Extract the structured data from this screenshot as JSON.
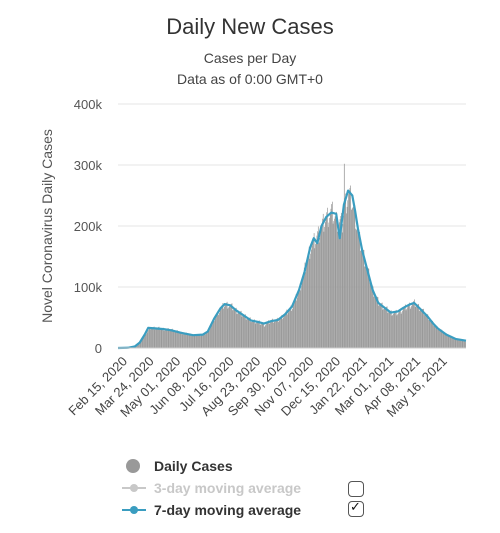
{
  "title": "Daily New Cases",
  "subtitle_1": "Cases per Day",
  "subtitle_2": "Data as of 0:00 GMT+0",
  "colors": {
    "bars": "#999999",
    "line7": "#3a9dc0",
    "line3": "#c8c8c8",
    "grid": "#e6e6e6"
  },
  "legend": {
    "daily": "Daily Cases",
    "ma3": "3-day moving average",
    "ma7": "7-day moving average",
    "ma3_checked": false,
    "ma7_checked": true
  },
  "chart_data": {
    "type": "bar",
    "ylabel": "Novel Coronavirus Daily Cases",
    "ylim": [
      0,
      400000
    ],
    "yticks": [
      0,
      100000,
      200000,
      300000,
      400000
    ],
    "ytick_labels": [
      "0",
      "100k",
      "200k",
      "300k",
      "400k"
    ],
    "xlabels": [
      "Feb 15, 2020",
      "Mar 24, 2020",
      "May 01, 2020",
      "Jun 08, 2020",
      "Jul 16, 2020",
      "Aug 23, 2020",
      "Sep 30, 2020",
      "Nov 07, 2020",
      "Dec 15, 2020",
      "Jan 22, 2021",
      "Mar 01, 2021",
      "Apr 08, 2021",
      "May 16, 2021"
    ],
    "x_start": "2020-02-15",
    "x_end": "2021-06-25",
    "grid": true,
    "legend_position": "bottom",
    "series": [
      {
        "name": "Daily Cases",
        "type": "bar",
        "points": [
          [
            "2020-02-15",
            50
          ],
          [
            "2020-03-01",
            600
          ],
          [
            "2020-03-10",
            2500
          ],
          [
            "2020-03-17",
            9000
          ],
          [
            "2020-03-24",
            22000
          ],
          [
            "2020-04-01",
            33000
          ],
          [
            "2020-04-10",
            33000
          ],
          [
            "2020-04-20",
            31000
          ],
          [
            "2020-05-01",
            30000
          ],
          [
            "2020-05-15",
            25000
          ],
          [
            "2020-06-01",
            21000
          ],
          [
            "2020-06-15",
            22000
          ],
          [
            "2020-06-22",
            27000
          ],
          [
            "2020-07-01",
            48000
          ],
          [
            "2020-07-10",
            65000
          ],
          [
            "2020-07-16",
            72000
          ],
          [
            "2020-07-24",
            70000
          ],
          [
            "2020-08-01",
            62000
          ],
          [
            "2020-08-10",
            55000
          ],
          [
            "2020-08-23",
            45000
          ],
          [
            "2020-09-01",
            43000
          ],
          [
            "2020-09-10",
            38000
          ],
          [
            "2020-09-20",
            45000
          ],
          [
            "2020-09-30",
            46000
          ],
          [
            "2020-10-10",
            56000
          ],
          [
            "2020-10-20",
            68000
          ],
          [
            "2020-10-30",
            95000
          ],
          [
            "2020-11-07",
            130000
          ],
          [
            "2020-11-15",
            165000
          ],
          [
            "2020-11-25",
            185000
          ],
          [
            "2020-12-01",
            200000
          ],
          [
            "2020-12-08",
            215000
          ],
          [
            "2020-12-15",
            225000
          ],
          [
            "2020-12-22",
            210000
          ],
          [
            "2020-12-30",
            205000
          ],
          [
            "2021-01-02",
            230000
          ],
          [
            "2021-01-08",
            255000
          ],
          [
            "2021-01-12",
            245000
          ],
          [
            "2021-01-18",
            215000
          ],
          [
            "2021-01-22",
            185000
          ],
          [
            "2021-01-28",
            160000
          ],
          [
            "2021-02-05",
            125000
          ],
          [
            "2021-02-12",
            95000
          ],
          [
            "2021-02-20",
            75000
          ],
          [
            "2021-03-01",
            66000
          ],
          [
            "2021-03-10",
            58000
          ],
          [
            "2021-03-20",
            58000
          ],
          [
            "2021-03-28",
            65000
          ],
          [
            "2021-04-05",
            70000
          ],
          [
            "2021-04-12",
            74000
          ],
          [
            "2021-04-20",
            66000
          ],
          [
            "2021-05-01",
            52000
          ],
          [
            "2021-05-10",
            38000
          ],
          [
            "2021-05-16",
            32000
          ],
          [
            "2021-05-28",
            22000
          ],
          [
            "2021-06-10",
            15000
          ],
          [
            "2021-06-25",
            11000
          ]
        ]
      },
      {
        "name": "7-day moving average",
        "type": "line",
        "points": [
          [
            "2020-02-15",
            0
          ],
          [
            "2020-03-01",
            500
          ],
          [
            "2020-03-10",
            2500
          ],
          [
            "2020-03-17",
            9000
          ],
          [
            "2020-03-24",
            22000
          ],
          [
            "2020-03-29",
            33000
          ],
          [
            "2020-04-10",
            32000
          ],
          [
            "2020-04-20",
            31000
          ],
          [
            "2020-05-01",
            29000
          ],
          [
            "2020-05-15",
            25000
          ],
          [
            "2020-06-01",
            21000
          ],
          [
            "2020-06-15",
            22000
          ],
          [
            "2020-06-22",
            27000
          ],
          [
            "2020-07-01",
            48000
          ],
          [
            "2020-07-10",
            65000
          ],
          [
            "2020-07-16",
            72000
          ],
          [
            "2020-07-24",
            70000
          ],
          [
            "2020-08-01",
            62000
          ],
          [
            "2020-08-10",
            55000
          ],
          [
            "2020-08-23",
            45000
          ],
          [
            "2020-09-01",
            43000
          ],
          [
            "2020-09-10",
            40000
          ],
          [
            "2020-09-20",
            44000
          ],
          [
            "2020-09-30",
            46000
          ],
          [
            "2020-10-10",
            55000
          ],
          [
            "2020-10-20",
            68000
          ],
          [
            "2020-10-30",
            95000
          ],
          [
            "2020-11-07",
            125000
          ],
          [
            "2020-11-15",
            165000
          ],
          [
            "2020-11-20",
            180000
          ],
          [
            "2020-11-25",
            172000
          ],
          [
            "2020-12-01",
            200000
          ],
          [
            "2020-12-08",
            215000
          ],
          [
            "2020-12-15",
            222000
          ],
          [
            "2020-12-22",
            220000
          ],
          [
            "2020-12-27",
            180000
          ],
          [
            "2021-01-02",
            235000
          ],
          [
            "2021-01-08",
            258000
          ],
          [
            "2021-01-14",
            250000
          ],
          [
            "2021-01-18",
            225000
          ],
          [
            "2021-01-22",
            195000
          ],
          [
            "2021-01-28",
            160000
          ],
          [
            "2021-02-05",
            125000
          ],
          [
            "2021-02-12",
            95000
          ],
          [
            "2021-02-20",
            74000
          ],
          [
            "2021-03-01",
            66000
          ],
          [
            "2021-03-10",
            58000
          ],
          [
            "2021-03-20",
            60000
          ],
          [
            "2021-03-28",
            66000
          ],
          [
            "2021-04-05",
            71000
          ],
          [
            "2021-04-12",
            74000
          ],
          [
            "2021-04-20",
            65000
          ],
          [
            "2021-05-01",
            52000
          ],
          [
            "2021-05-10",
            39000
          ],
          [
            "2021-05-16",
            32000
          ],
          [
            "2021-05-28",
            22000
          ],
          [
            "2021-06-10",
            15000
          ],
          [
            "2021-06-25",
            12000
          ]
        ]
      }
    ]
  }
}
